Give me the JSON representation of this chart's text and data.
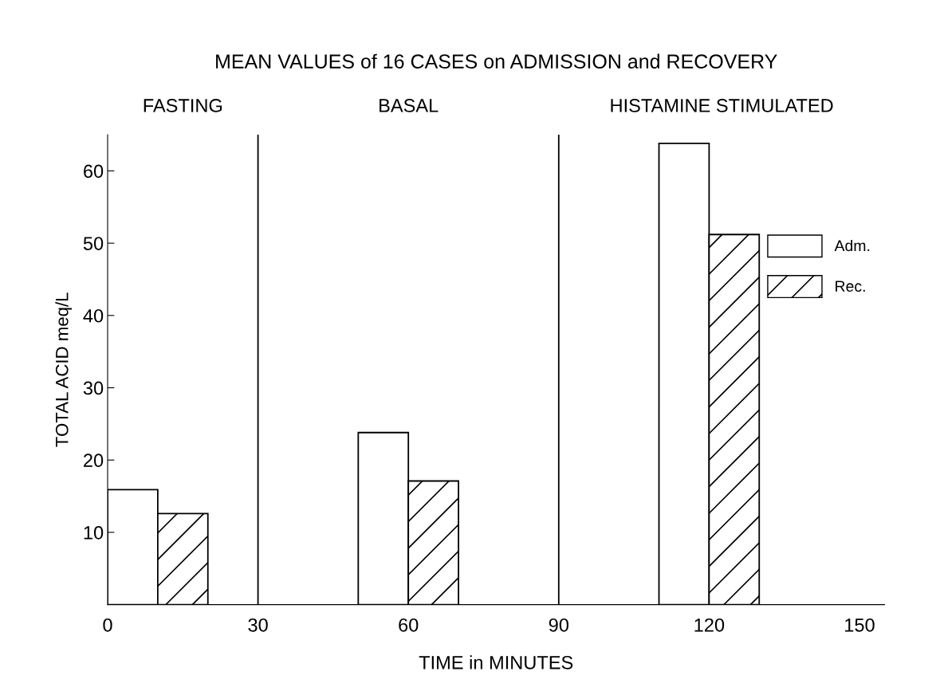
{
  "chart_data": {
    "type": "bar",
    "title": "MEAN VALUES of 16 CASES on ADMISSION and RECOVERY",
    "xlabel": "TIME in MINUTES",
    "ylabel": "TOTAL ACID meq/L",
    "series": [
      {
        "name": "Adm.",
        "color": "#ffffff",
        "x": [
          5,
          55,
          115
        ],
        "values": [
          15.9,
          23.8,
          63.8
        ]
      },
      {
        "name": "Rec.",
        "color": "#000000",
        "x": [
          15,
          65,
          125
        ],
        "values": [
          12.6,
          17.1,
          51.2
        ]
      }
    ],
    "xlim": [
      0,
      155
    ],
    "xticks": [
      0,
      30,
      60,
      90,
      120,
      150
    ],
    "ylim": [
      0,
      65
    ],
    "yticks": [
      10,
      20,
      30,
      40,
      50,
      60
    ],
    "ref_lines": [
      {
        "axis": "x",
        "value": 30,
        "color": "#000000"
      },
      {
        "axis": "x",
        "value": 90,
        "color": "#000000"
      }
    ],
    "annotations": [
      "FASTING",
      "BASAL",
      "HISTAMINE STIMULATED"
    ],
    "grid": false,
    "legend": "right"
  }
}
